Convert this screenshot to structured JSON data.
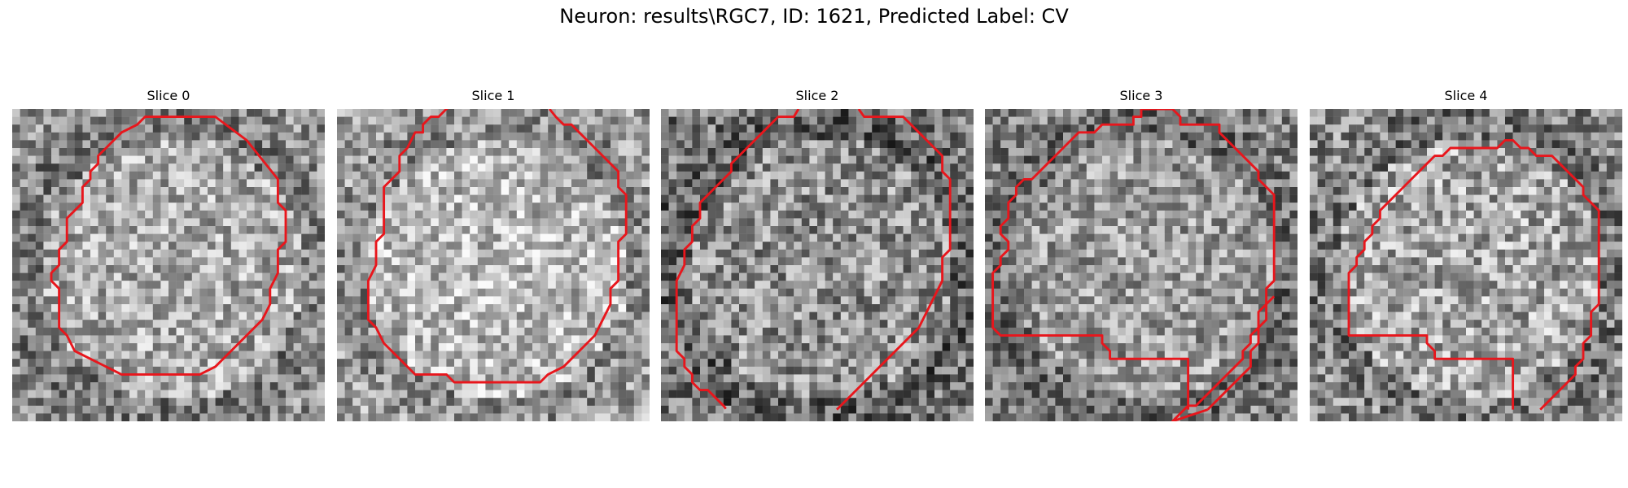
{
  "figure": {
    "title": "Neuron: results\\RGC7, ID: 1621, Predicted Label: CV"
  },
  "panels": [
    {
      "title": "Slice 0",
      "brightness": 0.62,
      "contrast": 0.55,
      "seed": 11,
      "contour": [
        [
          18,
          1
        ],
        [
          26,
          1
        ],
        [
          30,
          4
        ],
        [
          34,
          9
        ],
        [
          34,
          12
        ],
        [
          35,
          13
        ],
        [
          35,
          17
        ],
        [
          34,
          18
        ],
        [
          34,
          21
        ],
        [
          33,
          23
        ],
        [
          33,
          25
        ],
        [
          32,
          27
        ],
        [
          30,
          29
        ],
        [
          28,
          31
        ],
        [
          26,
          33
        ],
        [
          24,
          34
        ],
        [
          14,
          34
        ],
        [
          12,
          33
        ],
        [
          10,
          32
        ],
        [
          8,
          31
        ],
        [
          7,
          29
        ],
        [
          6,
          28
        ],
        [
          6,
          23
        ],
        [
          5,
          22
        ],
        [
          5,
          21
        ],
        [
          6,
          20
        ],
        [
          6,
          18
        ],
        [
          7,
          17
        ],
        [
          7,
          14
        ],
        [
          8,
          13
        ],
        [
          9,
          12
        ],
        [
          9,
          10
        ],
        [
          10,
          9
        ],
        [
          10,
          8
        ],
        [
          11,
          7
        ],
        [
          11,
          6
        ],
        [
          12,
          5
        ],
        [
          14,
          3
        ],
        [
          16,
          2
        ],
        [
          17,
          1
        ],
        [
          18,
          1
        ]
      ],
      "closed": true
    },
    {
      "title": "Slice 1",
      "brightness": 0.68,
      "contrast": 0.55,
      "seed": 23,
      "contour": [
        [
          14.5,
          -0.3
        ],
        [
          14,
          0
        ],
        [
          13,
          1
        ],
        [
          12,
          1
        ],
        [
          11,
          2
        ],
        [
          11,
          3
        ],
        [
          10,
          3
        ],
        [
          9,
          5
        ],
        [
          8,
          6
        ],
        [
          8,
          8
        ],
        [
          7,
          9
        ],
        [
          6,
          10
        ],
        [
          6,
          16
        ],
        [
          5,
          17
        ],
        [
          5,
          20
        ],
        [
          4,
          22
        ],
        [
          4,
          27
        ],
        [
          5,
          28
        ],
        [
          6,
          30
        ],
        [
          8,
          32
        ],
        [
          10,
          34
        ],
        [
          14,
          34
        ],
        [
          15,
          35
        ],
        [
          26,
          35
        ],
        [
          27,
          34
        ],
        [
          29,
          33
        ],
        [
          31,
          31
        ],
        [
          33,
          29
        ],
        [
          34,
          27
        ],
        [
          35,
          25
        ],
        [
          35,
          23
        ],
        [
          36,
          22
        ],
        [
          36,
          17
        ],
        [
          37,
          16
        ],
        [
          37,
          11
        ],
        [
          36,
          10
        ],
        [
          36,
          8
        ],
        [
          35,
          7
        ],
        [
          34,
          6
        ],
        [
          33,
          5
        ],
        [
          32,
          4
        ],
        [
          31,
          3
        ],
        [
          30,
          2
        ],
        [
          29,
          2
        ],
        [
          28,
          1
        ],
        [
          27.2,
          0
        ]
      ],
      "closed": false
    },
    {
      "title": "Slice 2",
      "brightness": 0.52,
      "contrast": 0.6,
      "seed": 37,
      "contour": [
        [
          17.6,
          0
        ],
        [
          17,
          1
        ],
        [
          15,
          1
        ],
        [
          14,
          2
        ],
        [
          13,
          3
        ],
        [
          12,
          4
        ],
        [
          11,
          5
        ],
        [
          10,
          6
        ],
        [
          9,
          7
        ],
        [
          9,
          8
        ],
        [
          8,
          9
        ],
        [
          7,
          10
        ],
        [
          6,
          11
        ],
        [
          5,
          12
        ],
        [
          5,
          14
        ],
        [
          4,
          15
        ],
        [
          4,
          17
        ],
        [
          3,
          18
        ],
        [
          3,
          20
        ],
        [
          2,
          22
        ],
        [
          2,
          31
        ],
        [
          3,
          32
        ],
        [
          3,
          33
        ],
        [
          4,
          34
        ],
        [
          4,
          35
        ],
        [
          5,
          36
        ],
        [
          6,
          36
        ],
        [
          7,
          37
        ],
        [
          8,
          38
        ],
        [
          8.3,
          38.4
        ]
      ],
      "closed": false,
      "extra": [
        [
          [
            25.3,
            0
          ],
          [
            26,
            1
          ],
          [
            31,
            1
          ],
          [
            32,
            2
          ],
          [
            33,
            3
          ],
          [
            34,
            4
          ],
          [
            35,
            5
          ],
          [
            36,
            6
          ],
          [
            36,
            8
          ],
          [
            37,
            9
          ],
          [
            37,
            18
          ],
          [
            36,
            19
          ],
          [
            36,
            22
          ],
          [
            35,
            24
          ],
          [
            34,
            26
          ],
          [
            33,
            28
          ],
          [
            31,
            30
          ],
          [
            29,
            32
          ],
          [
            27,
            34
          ],
          [
            25,
            36
          ],
          [
            23,
            38
          ],
          [
            22.5,
            38.5
          ]
        ]
      ]
    },
    {
      "title": "Slice 3",
      "brightness": 0.56,
      "contrast": 0.55,
      "seed": 51,
      "contour": [
        [
          26,
          38.5
        ],
        [
          26,
          32
        ],
        [
          16,
          32
        ],
        [
          16,
          31
        ],
        [
          15,
          30
        ],
        [
          15,
          29
        ],
        [
          13,
          29
        ],
        [
          12,
          29
        ],
        [
          2,
          29
        ],
        [
          1,
          28
        ],
        [
          1,
          21
        ],
        [
          2,
          20
        ],
        [
          2,
          19
        ],
        [
          3,
          18
        ],
        [
          3,
          17
        ],
        [
          2,
          16
        ],
        [
          2,
          15
        ],
        [
          3,
          14
        ],
        [
          3,
          12
        ],
        [
          4,
          11
        ],
        [
          4,
          10
        ],
        [
          5,
          9
        ],
        [
          6,
          9
        ],
        [
          7,
          8
        ],
        [
          8,
          7
        ],
        [
          9,
          6
        ],
        [
          10,
          5
        ],
        [
          11,
          4
        ],
        [
          12,
          3
        ],
        [
          14,
          3
        ],
        [
          15,
          2
        ],
        [
          19,
          2
        ],
        [
          19,
          1
        ],
        [
          20,
          1
        ],
        [
          20,
          0
        ],
        [
          24,
          0
        ],
        [
          25,
          1
        ],
        [
          25,
          2
        ],
        [
          30,
          2
        ],
        [
          30,
          3
        ],
        [
          31,
          4
        ],
        [
          32,
          5
        ],
        [
          33,
          6
        ],
        [
          34,
          7
        ],
        [
          35,
          8
        ],
        [
          35,
          9
        ],
        [
          36,
          10
        ],
        [
          37,
          11
        ],
        [
          37,
          22
        ],
        [
          36,
          23
        ],
        [
          36,
          25
        ],
        [
          35,
          26
        ],
        [
          35,
          28
        ],
        [
          34,
          29
        ],
        [
          34,
          30
        ],
        [
          33,
          31
        ],
        [
          33,
          32
        ],
        [
          32,
          33
        ],
        [
          31,
          34
        ],
        [
          30,
          35
        ],
        [
          29,
          36
        ],
        [
          28,
          37
        ],
        [
          27,
          38
        ],
        [
          26,
          38
        ],
        [
          25,
          39
        ],
        [
          24,
          40
        ],
        [
          28.5,
          38.5
        ]
      ],
      "closed": false,
      "extra": [
        [
          [
            28.5,
            38.5
          ],
          [
            30,
            37
          ],
          [
            32,
            35
          ],
          [
            34,
            33
          ],
          [
            34,
            31
          ],
          [
            35,
            30
          ],
          [
            35,
            28
          ],
          [
            36,
            27
          ],
          [
            36,
            25
          ],
          [
            37,
            24
          ]
        ]
      ]
    },
    {
      "title": "Slice 4",
      "brightness": 0.6,
      "contrast": 0.6,
      "seed": 67,
      "contour": [
        [
          26,
          38.5
        ],
        [
          26,
          32
        ],
        [
          16,
          32
        ],
        [
          16,
          31
        ],
        [
          15,
          30
        ],
        [
          15,
          29
        ],
        [
          13,
          29
        ],
        [
          12,
          29
        ],
        [
          5,
          29
        ],
        [
          5,
          21
        ],
        [
          6,
          20
        ],
        [
          6,
          19
        ],
        [
          7,
          18
        ],
        [
          7,
          17
        ],
        [
          8,
          16
        ],
        [
          8,
          15
        ],
        [
          9,
          14
        ],
        [
          9,
          13
        ],
        [
          10,
          12
        ],
        [
          11,
          11
        ],
        [
          12,
          10
        ],
        [
          13,
          9
        ],
        [
          14,
          8
        ],
        [
          15,
          7
        ],
        [
          16,
          6
        ],
        [
          17,
          6
        ],
        [
          18,
          5
        ],
        [
          23,
          5
        ],
        [
          24,
          5
        ],
        [
          25,
          4
        ],
        [
          26,
          4
        ],
        [
          27,
          5
        ],
        [
          28,
          5
        ],
        [
          29,
          6
        ],
        [
          31,
          6
        ],
        [
          32,
          7
        ],
        [
          33,
          8
        ],
        [
          34,
          9
        ],
        [
          35,
          10
        ],
        [
          35,
          11
        ],
        [
          36,
          12
        ],
        [
          37,
          13
        ],
        [
          37,
          25
        ],
        [
          36,
          26
        ],
        [
          36,
          29
        ],
        [
          35,
          30
        ],
        [
          35,
          32
        ],
        [
          34,
          33
        ],
        [
          34,
          34
        ],
        [
          33,
          35
        ],
        [
          32,
          36
        ],
        [
          31,
          37
        ],
        [
          30,
          38
        ],
        [
          29.5,
          38.5
        ]
      ],
      "closed": false
    }
  ],
  "colors": {
    "contour": "#e8161c"
  }
}
